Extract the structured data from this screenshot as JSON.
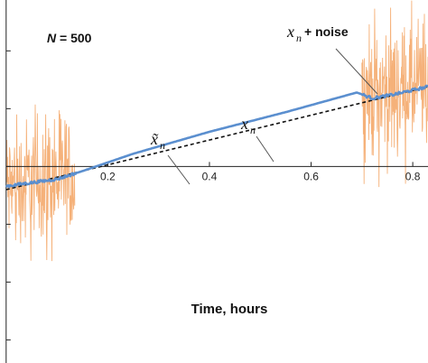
{
  "chart_data": {
    "type": "line",
    "xlabel": "Time, hours",
    "xlim": [
      -0.005,
      0.83
    ],
    "ylim": [
      -0.85,
      0.72
    ],
    "xticks": [
      0.2,
      0.4,
      0.6,
      0.8
    ],
    "xtick_labels": [
      "0.2",
      "0.4",
      "0.6",
      "0.8"
    ],
    "yticks": [
      -0.75,
      -0.5,
      -0.25,
      0,
      0.25,
      0.5
    ],
    "grid": false,
    "colors": {
      "noisy": "#f4a86a",
      "filtered": "#5b8fcf",
      "true": "#111111"
    },
    "series": [
      {
        "id": "noisy",
        "label_math": "x",
        "label_sub": "n",
        "label_text": " + noise",
        "segments": [
          {
            "x_start": 0.0,
            "x_end": 0.135,
            "center_start": -0.085,
            "center_end": -0.045,
            "amplitude": 0.55
          },
          {
            "x_start": 0.7,
            "x_end": 0.83,
            "center_start": 0.32,
            "center_end": 0.34,
            "amplitude": 0.55
          }
        ]
      },
      {
        "id": "filtered",
        "label_math": "x̃",
        "label_sub": "n",
        "points": [
          [
            0.0,
            -0.085
          ],
          [
            0.1,
            -0.055
          ],
          [
            0.15,
            -0.02
          ],
          [
            0.25,
            0.055
          ],
          [
            0.4,
            0.15
          ],
          [
            0.55,
            0.235
          ],
          [
            0.69,
            0.32
          ],
          [
            0.72,
            0.295
          ],
          [
            0.76,
            0.31
          ],
          [
            0.83,
            0.345
          ]
        ]
      },
      {
        "id": "true",
        "label_math": "x",
        "label_sub": "n",
        "style": "dashed",
        "points": [
          [
            0.0,
            -0.1
          ],
          [
            0.83,
            0.345
          ]
        ]
      }
    ],
    "annotations": [
      {
        "text": "N",
        "suffix": " = 500"
      }
    ]
  }
}
